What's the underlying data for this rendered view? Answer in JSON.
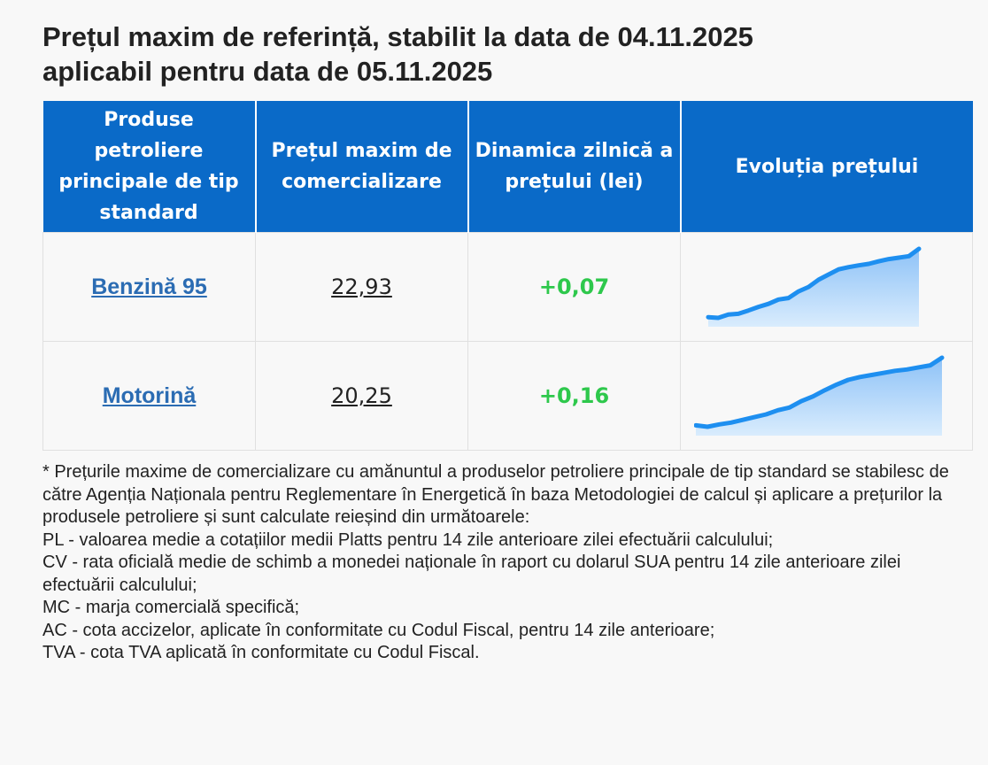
{
  "title": {
    "line1": "Prețul maxim de referință, stabilit la data de 04.11.2025",
    "line2": "aplicabil pentru data de 05.11.2025"
  },
  "table": {
    "headers": [
      "Produse petroliere principale de tip standard",
      "Prețul maxim de comercializare",
      "Dinamica zilnică a prețului (lei)",
      "Evoluția prețului"
    ],
    "rows": [
      {
        "product": "Benzină 95",
        "price": "22,93",
        "change": "+0,07",
        "trend": [
          1.0,
          0.0,
          4.5,
          5.5,
          10.0,
          15.0,
          19.0,
          25.0,
          27.0,
          36.0,
          42.0,
          52.0,
          59.0,
          66.0,
          69.0,
          71.5,
          73.5,
          77.0,
          80.0,
          82.0,
          84.0,
          94.0
        ]
      },
      {
        "product": "Motorină",
        "price": "20,25",
        "change": "+0,16",
        "trend": [
          2.0,
          0.0,
          3.5,
          6.0,
          10.0,
          14.0,
          18.0,
          24.0,
          28.0,
          37.0,
          44.0,
          53.0,
          61.0,
          68.0,
          72.0,
          75.0,
          78.0,
          81.0,
          83.0,
          86.0,
          89.0,
          100.0
        ]
      }
    ]
  },
  "colors": {
    "header_bg": "#0a6ac8",
    "link": "#2b6cb3",
    "positive": "#2ec84c",
    "spark_line": "#1e8ff0"
  },
  "footnote": [
    "* Prețurile maxime de comercializare cu amănuntul a produselor petroliere principale de tip standard se stabilesc de către Agenția Naționala pentru Reglementare în Energetică în baza Metodologiei de calcul și aplicare a prețurilor la produsele petroliere și sunt calculate reieșind din următoarele:",
    "PL - valoarea medie a cotațiilor medii Platts pentru 14 zile anterioare zilei efectuării calculului;",
    "CV - rata oficială medie de schimb a monedei naționale în raport cu dolarul SUA pentru 14 zile anterioare zilei efectuării calculului;",
    "MC - marja comercială specifică;",
    "AC - cota accizelor, aplicate în conformitate cu Codul Fiscal, pentru 14 zile anterioare;",
    "TVA - cota TVA aplicată în conformitate cu Codul Fiscal."
  ]
}
